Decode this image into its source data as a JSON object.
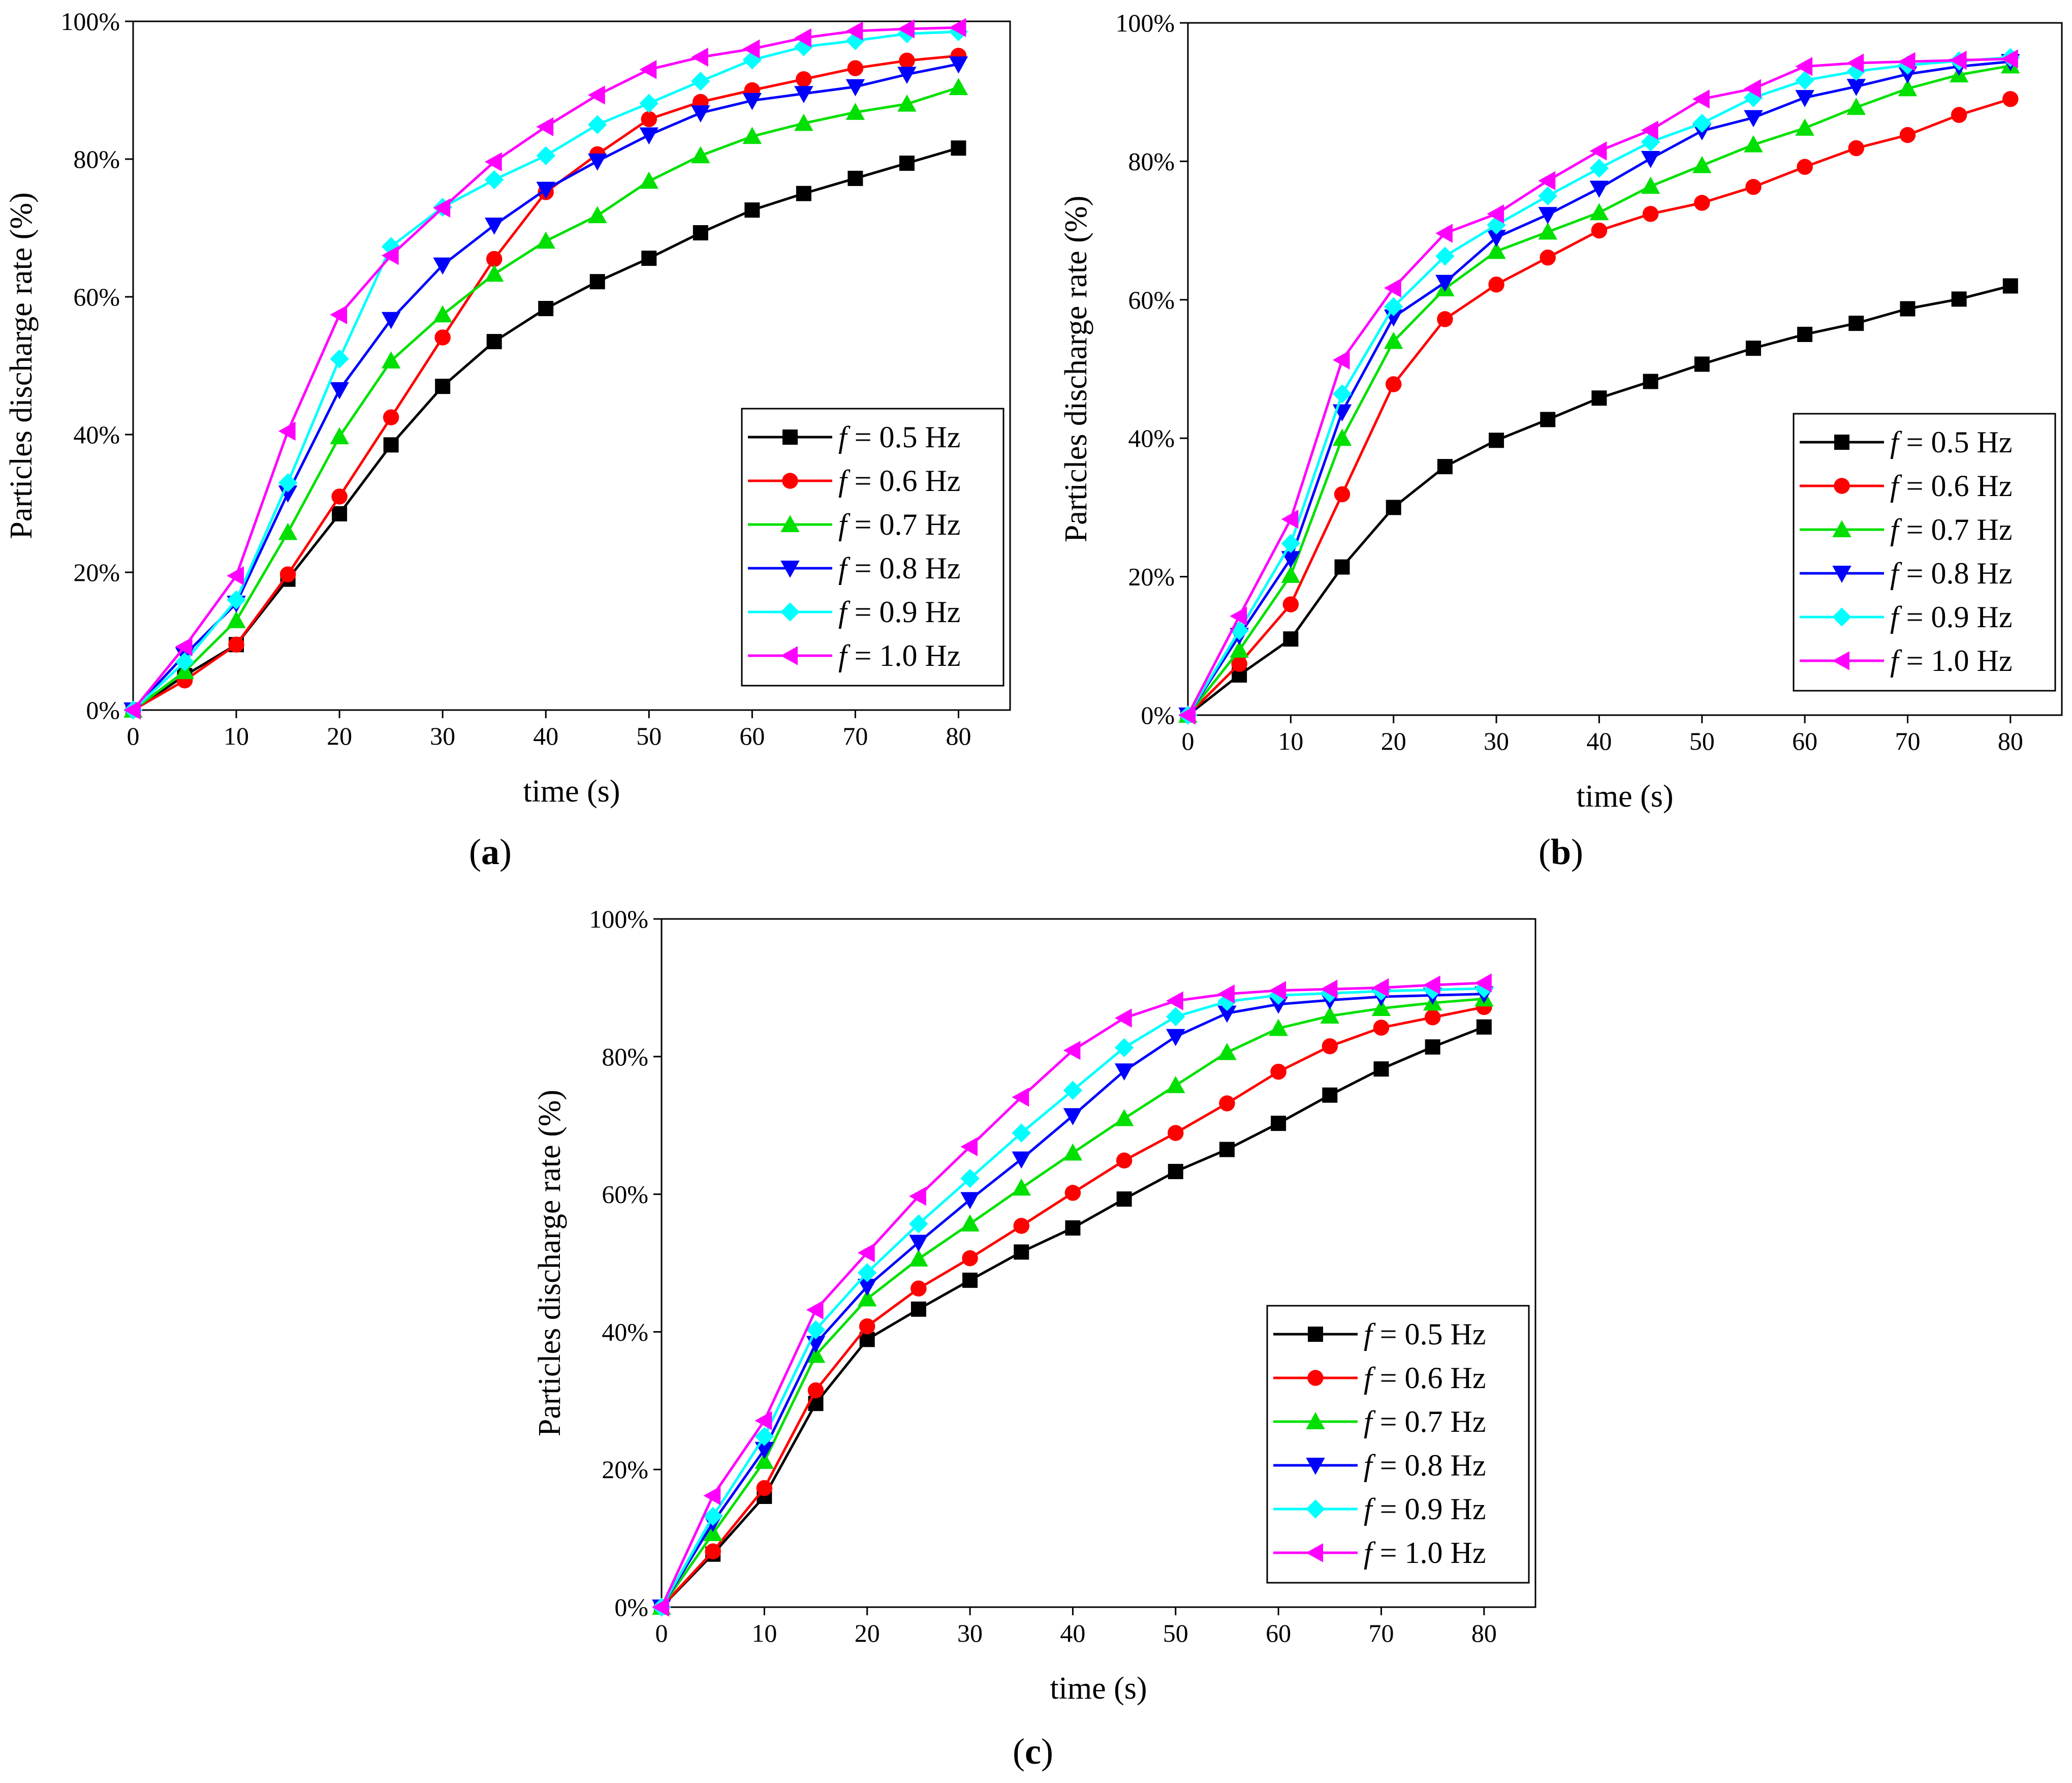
{
  "figure": {
    "legend_prefix": "f",
    "legend_separator": " = "
  },
  "chart_data": [
    {
      "panel_label": "(a)",
      "type": "line",
      "xlabel": "time (s)",
      "ylabel": "Particles discharge rate (%)",
      "xlim": [
        0,
        85
      ],
      "ylim": [
        0,
        100
      ],
      "xticks": [
        0,
        10,
        20,
        30,
        40,
        50,
        60,
        70,
        80
      ],
      "yticks": [
        0,
        20,
        40,
        60,
        80,
        100
      ],
      "ytick_labels": [
        "0%",
        "20%",
        "40%",
        "60%",
        "80%",
        "100%"
      ],
      "legend_position": "lower-right",
      "x": [
        0,
        5,
        10,
        15,
        20,
        25,
        30,
        35,
        40,
        45,
        50,
        55,
        60,
        65,
        70,
        75,
        80
      ],
      "series": [
        {
          "name": "0.5 Hz",
          "color": "#000000",
          "marker": "square",
          "values": [
            0,
            5,
            9.5,
            19,
            28.5,
            38.5,
            47,
            53.5,
            58.3,
            62.2,
            65.6,
            69.3,
            72.6,
            75,
            77.2,
            79.4,
            81.6
          ]
        },
        {
          "name": "0.6 Hz",
          "color": "#ff0000",
          "marker": "circle",
          "values": [
            0,
            4.3,
            9.5,
            19.7,
            31,
            42.5,
            54.1,
            65.5,
            75.2,
            80.7,
            85.8,
            88.3,
            90,
            91.6,
            93.2,
            94.3,
            95
          ]
        },
        {
          "name": "0.7 Hz",
          "color": "#00e000",
          "marker": "triangle-up",
          "values": [
            0,
            5.6,
            13,
            25.8,
            39.7,
            50.7,
            57.4,
            63.3,
            68.1,
            71.8,
            76.8,
            80.5,
            83.3,
            85.2,
            86.8,
            88,
            90.4
          ]
        },
        {
          "name": "0.8 Hz",
          "color": "#0000ff",
          "marker": "triangle-down",
          "values": [
            0,
            8,
            15.5,
            31.5,
            46.5,
            56.7,
            64.6,
            70.4,
            75.6,
            79.7,
            83.5,
            86.7,
            88.5,
            89.5,
            90.5,
            92.3,
            93.8
          ]
        },
        {
          "name": "0.9 Hz",
          "color": "#00ffff",
          "marker": "diamond",
          "values": [
            0,
            7,
            16,
            33,
            51,
            67.3,
            73,
            77,
            80.5,
            85,
            88.1,
            91.3,
            94.4,
            96.3,
            97.2,
            98.2,
            98.5
          ]
        },
        {
          "name": "1.0 Hz",
          "color": "#ff00ff",
          "marker": "triangle-left",
          "values": [
            0,
            9.2,
            19.5,
            40.5,
            57.4,
            66,
            72.9,
            79.6,
            84.7,
            89.3,
            93,
            94.8,
            96,
            97.6,
            98.6,
            98.9,
            99.1
          ]
        }
      ]
    },
    {
      "panel_label": "(b)",
      "type": "line",
      "xlabel": "time (s)",
      "ylabel": "Particles discharge rate (%)",
      "xlim": [
        0,
        85
      ],
      "ylim": [
        0,
        100
      ],
      "xticks": [
        0,
        10,
        20,
        30,
        40,
        50,
        60,
        70,
        80
      ],
      "yticks": [
        0,
        20,
        40,
        60,
        80,
        100
      ],
      "ytick_labels": [
        "0%",
        "20%",
        "40%",
        "60%",
        "80%",
        "100%"
      ],
      "legend_position": "lower-right",
      "x": [
        0,
        5,
        10,
        15,
        20,
        25,
        30,
        35,
        40,
        45,
        50,
        55,
        60,
        65,
        70,
        75,
        80
      ],
      "series": [
        {
          "name": "0.5 Hz",
          "color": "#000000",
          "marker": "square",
          "values": [
            0,
            5.8,
            11,
            21.4,
            30,
            35.9,
            39.7,
            42.7,
            45.8,
            48.2,
            50.7,
            53,
            55,
            56.6,
            58.7,
            60.1,
            62
          ]
        },
        {
          "name": "0.6 Hz",
          "color": "#ff0000",
          "marker": "circle",
          "values": [
            0,
            7.4,
            16,
            31.9,
            47.8,
            57.2,
            62.2,
            66.1,
            70,
            72.4,
            74,
            76.3,
            79.2,
            81.9,
            83.8,
            86.7,
            89
          ]
        },
        {
          "name": "0.7 Hz",
          "color": "#00e000",
          "marker": "triangle-up",
          "values": [
            0,
            9.4,
            20.2,
            40,
            54,
            61.6,
            67,
            69.8,
            72.6,
            76.4,
            79.4,
            82.4,
            84.8,
            87.8,
            90.5,
            92.5,
            93.8
          ]
        },
        {
          "name": "0.8 Hz",
          "color": "#0000ff",
          "marker": "triangle-down",
          "values": [
            0,
            11.5,
            22.6,
            43.8,
            57.5,
            62.5,
            69,
            72.3,
            76.1,
            80.4,
            84.4,
            86.3,
            89.2,
            90.8,
            92.6,
            93.7,
            94.4
          ]
        },
        {
          "name": "0.9 Hz",
          "color": "#00ffff",
          "marker": "diamond",
          "values": [
            0,
            12.2,
            24.8,
            46.4,
            59,
            66.3,
            70.8,
            75,
            79,
            82.8,
            85.5,
            89.2,
            91.7,
            93,
            93.9,
            94.5,
            95
          ]
        },
        {
          "name": "1.0 Hz",
          "color": "#ff00ff",
          "marker": "triangle-left",
          "values": [
            0,
            14.3,
            28.3,
            51.3,
            61.7,
            69.6,
            72.4,
            77.2,
            81.5,
            84.5,
            89,
            90.5,
            93.7,
            94.2,
            94.4,
            94.6,
            94.8
          ]
        }
      ]
    },
    {
      "panel_label": "(c)",
      "type": "line",
      "xlabel": "time (s)",
      "ylabel": "Particles discharge rate (%)",
      "xlim": [
        0,
        85
      ],
      "ylim": [
        0,
        100
      ],
      "xticks": [
        0,
        10,
        20,
        30,
        40,
        50,
        60,
        70,
        80
      ],
      "yticks": [
        0,
        20,
        40,
        60,
        80,
        100
      ],
      "ytick_labels": [
        "0%",
        "20%",
        "40%",
        "60%",
        "80%",
        "100%"
      ],
      "legend_position": "lower-right",
      "x": [
        0,
        5,
        10,
        15,
        20,
        25,
        30,
        35,
        40,
        45,
        50,
        55,
        60,
        65,
        70,
        75,
        80
      ],
      "series": [
        {
          "name": "0.5 Hz",
          "color": "#000000",
          "marker": "square",
          "values": [
            0,
            7.7,
            16.1,
            29.6,
            38.9,
            43.3,
            47.5,
            51.6,
            55.1,
            59.3,
            63.3,
            66.5,
            70.3,
            74.4,
            78.2,
            81.4,
            84.3
          ]
        },
        {
          "name": "0.6 Hz",
          "color": "#ff0000",
          "marker": "circle",
          "values": [
            0,
            8.1,
            17.3,
            31.5,
            40.8,
            46.3,
            50.7,
            55.4,
            60.2,
            64.9,
            68.9,
            73.2,
            77.8,
            81.5,
            84.2,
            85.7,
            87.2
          ]
        },
        {
          "name": "0.7 Hz",
          "color": "#00e000",
          "marker": "triangle-up",
          "values": [
            0,
            10.7,
            21.2,
            36.6,
            44.8,
            50.6,
            55.7,
            60.9,
            66,
            71,
            75.8,
            80.6,
            84.1,
            85.9,
            87,
            87.8,
            88.4
          ]
        },
        {
          "name": "0.8 Hz",
          "color": "#0000ff",
          "marker": "triangle-down",
          "values": [
            0,
            12.3,
            22.9,
            38.3,
            46.6,
            53,
            59.2,
            65.1,
            71.4,
            77.9,
            82.9,
            86.3,
            87.6,
            88.2,
            88.7,
            88.9,
            89.1
          ]
        },
        {
          "name": "0.9 Hz",
          "color": "#00ffff",
          "marker": "diamond",
          "values": [
            0,
            13.2,
            24.8,
            40.3,
            48.6,
            55.7,
            62.3,
            68.9,
            75.1,
            81.3,
            85.8,
            88,
            88.9,
            89.2,
            89.5,
            89.7,
            89.9
          ]
        },
        {
          "name": "1.0 Hz",
          "color": "#ff00ff",
          "marker": "triangle-left",
          "values": [
            0,
            16.2,
            27.1,
            43.2,
            51.5,
            59.7,
            66.9,
            74.1,
            80.9,
            85.6,
            88.1,
            89.1,
            89.6,
            89.8,
            90,
            90.4,
            90.7
          ]
        }
      ]
    }
  ]
}
